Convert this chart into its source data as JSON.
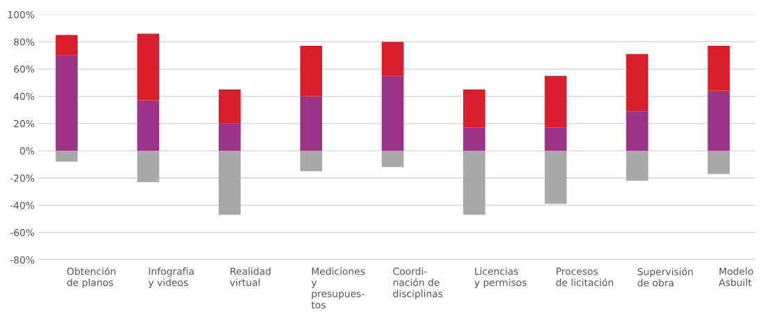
{
  "chart_data": {
    "type": "bar",
    "stacked": true,
    "categories": [
      "Obtención\nde planos",
      "Infografia\ny videos",
      "Realidad\nvirtual",
      "Mediciones\ny\npresupues-\ntos",
      "Coordi-\nnación de\ndisciplinas",
      "Licencias\ny permisos",
      "Procesos\nde licitación",
      "Supervisión\nde obra",
      "Modelo\nAsbuilt"
    ],
    "series": [
      {
        "color": "#9b3386",
        "values": [
          70,
          37,
          20,
          40,
          55,
          17,
          17,
          29,
          44
        ]
      },
      {
        "color": "#d81e2a",
        "values": [
          15,
          49,
          25,
          37,
          25,
          28,
          38,
          42,
          33
        ]
      },
      {
        "color": "#a7aaa7",
        "values": [
          -8,
          -23,
          -47,
          -15,
          -12,
          -47,
          -39,
          -22,
          -17
        ]
      }
    ],
    "ylim": [
      -80,
      100
    ],
    "yticks": [
      {
        "value": -80,
        "label": "-80%"
      },
      {
        "value": -60,
        "label": "-60%"
      },
      {
        "value": -40,
        "label": "-40%"
      },
      {
        "value": -20,
        "label": "-20%"
      },
      {
        "value": 0,
        "label": "0%"
      },
      {
        "value": 20,
        "label": "20%"
      },
      {
        "value": 40,
        "label": "40%"
      },
      {
        "value": 60,
        "label": "60%"
      },
      {
        "value": 80,
        "label": "80%"
      },
      {
        "value": 100,
        "label": "100%"
      }
    ],
    "grid": "y"
  }
}
